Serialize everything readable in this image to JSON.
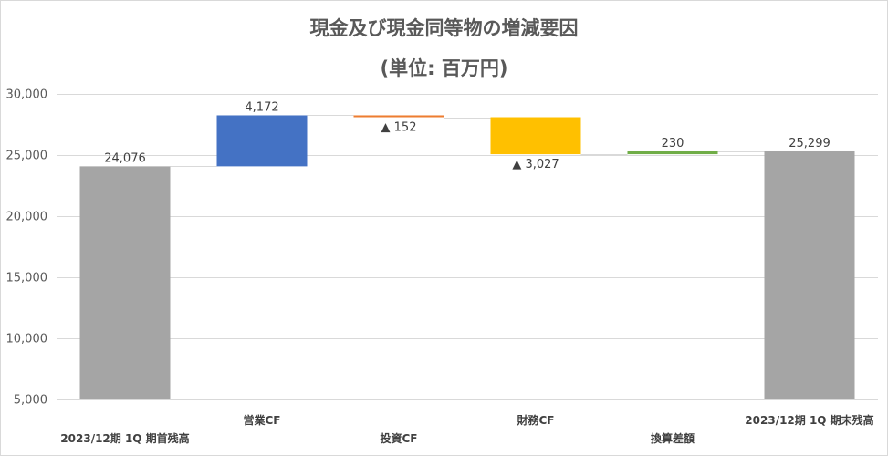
{
  "chart_data": {
    "type": "bar",
    "subtype": "waterfall",
    "title": "現金及び現金同等物の増減要因",
    "subtitle": "(単位: 百万円)",
    "categories": [
      "2023/12期 1Q 期首残高",
      "営業CF",
      "投資CF",
      "財務CF",
      "換算差額",
      "2023/12期 1Q 期末残高"
    ],
    "values": [
      24076,
      4172,
      -152,
      -3027,
      230,
      25299
    ],
    "data_labels": [
      "24,076",
      "4,172",
      "▲ 152",
      "▲ 3,027",
      "230",
      "25,299"
    ],
    "bar_kinds": [
      "total",
      "increase",
      "decrease",
      "decrease",
      "increase",
      "total"
    ],
    "colors": [
      "#a5a5a5",
      "#4472c4",
      "#ed7d31",
      "#ffc000",
      "#70ad47",
      "#a5a5a5"
    ],
    "ylim": [
      5000,
      30000
    ],
    "yticks": [
      "5,000",
      "10,000",
      "15,000",
      "20,000",
      "25,000",
      "30,000"
    ],
    "grid": true,
    "legend": "none"
  }
}
